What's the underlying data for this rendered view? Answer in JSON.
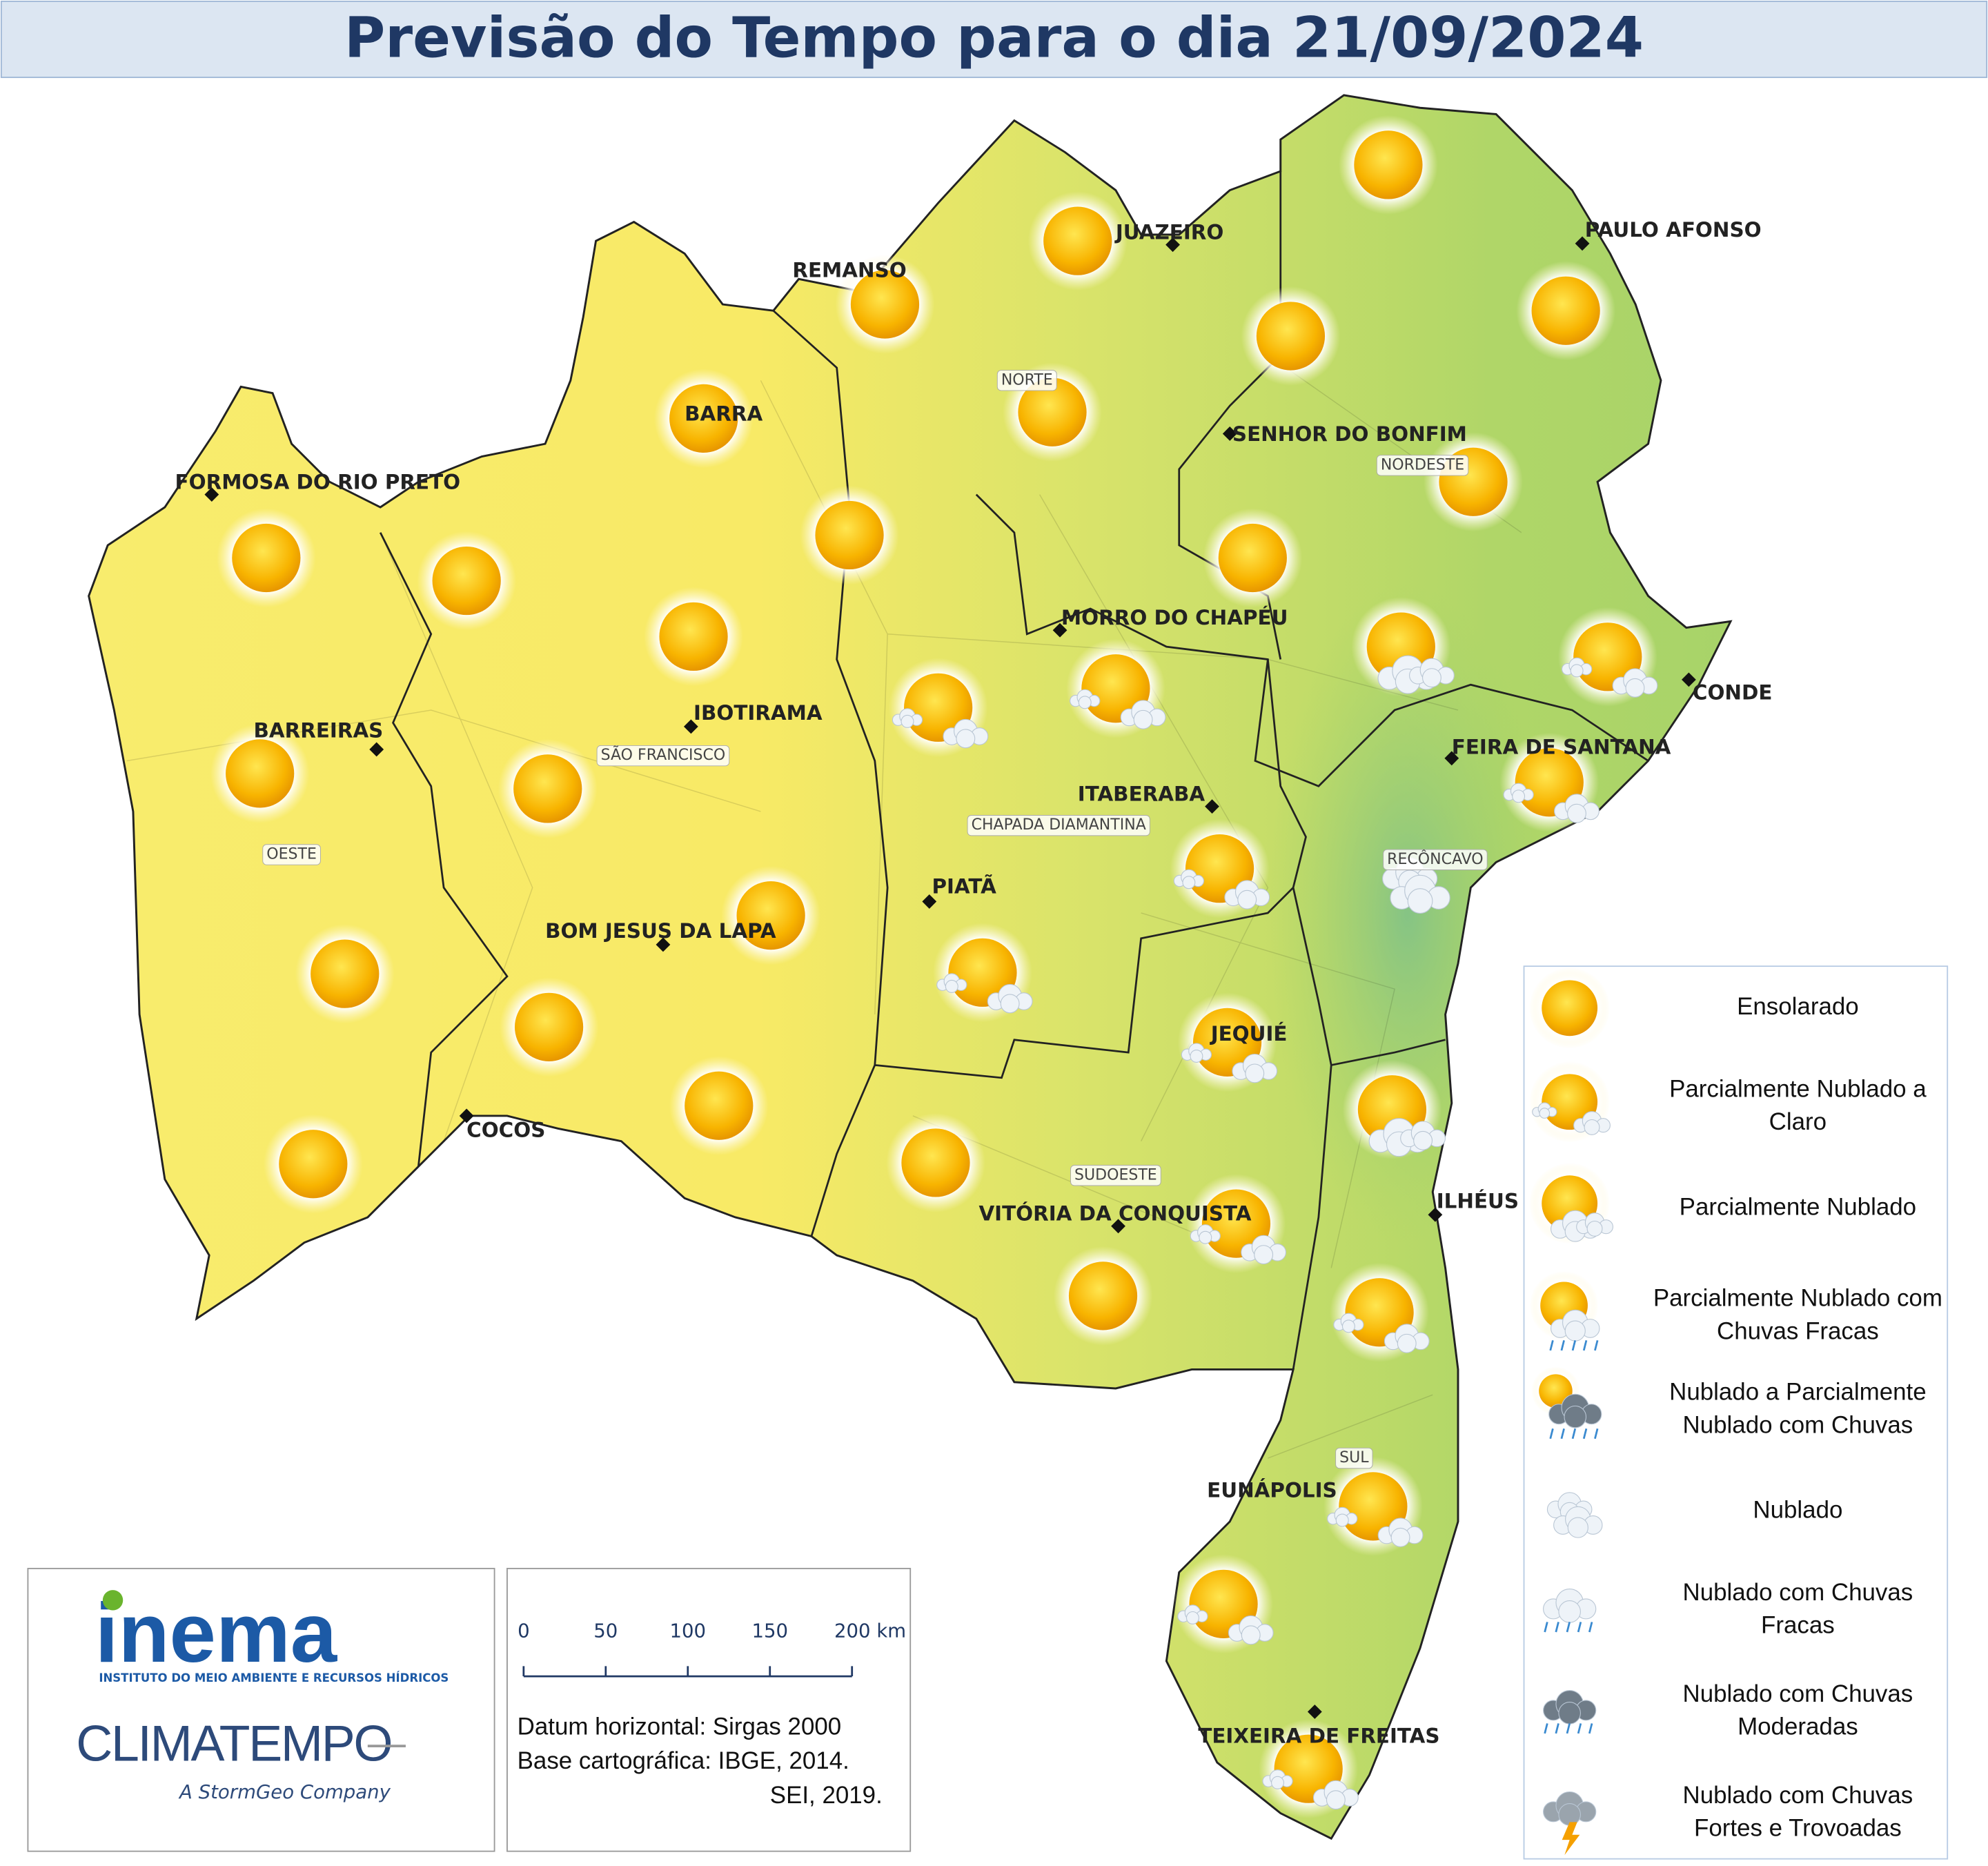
{
  "title": "Previsão do Tempo para o dia 21/09/2024",
  "cities": [
    "JUAZEIRO",
    "PAULO AFONSO",
    "REMANSO",
    "BARRA",
    "SENHOR DO BONFIM",
    "FORMOSA DO RIO PRETO",
    "MORRO DO CHAPÉU",
    "CONDE",
    "IBOTIRAMA",
    "BARREIRAS",
    "FEIRA DE SANTANA",
    "ITABERABA",
    "PIATÃ",
    "BOM JESUS DA LAPA",
    "JEQUIÉ",
    "COCOS",
    "ILHÉUS",
    "VITÓRIA DA CONQUISTA",
    "EUNÁPOLIS",
    "TEIXEIRA DE FREITAS"
  ],
  "regions": [
    "NORTE",
    "NORDESTE",
    "SÃO FRANCISCO",
    "OESTE",
    "CHAPADA DIAMANTINA",
    "RECÔNCAVO",
    "SUDOESTE",
    "SUL"
  ],
  "legend": [
    [
      "Ensolarado"
    ],
    [
      "Parcialmente Nublado a",
      "Claro"
    ],
    [
      "Parcialmente Nublado"
    ],
    [
      "Parcialmente Nublado com",
      "Chuvas Fracas"
    ],
    [
      "Nublado a Parcialmente",
      "Nublado com Chuvas"
    ],
    [
      "Nublado"
    ],
    [
      "Nublado com Chuvas",
      "Fracas"
    ],
    [
      "Nublado com Chuvas",
      "Moderadas"
    ],
    [
      "Nublado com Chuvas",
      "Fortes e Trovoadas"
    ]
  ],
  "logo": {
    "inema": "inema",
    "inema_subtitle": "INSTITUTO DO MEIO AMBIENTE E RECURSOS HÍDRICOS",
    "climatempo": "CLIMATEMPO",
    "climatempo_subtitle": "A StormGeo Company"
  },
  "scale_labels": [
    "0",
    "50",
    "100",
    "150",
    "200 km"
  ],
  "credits": [
    "Datum horizontal: Sirgas 2000",
    "Base cartográfica: IBGE, 2014.",
    "SEI, 2019."
  ]
}
